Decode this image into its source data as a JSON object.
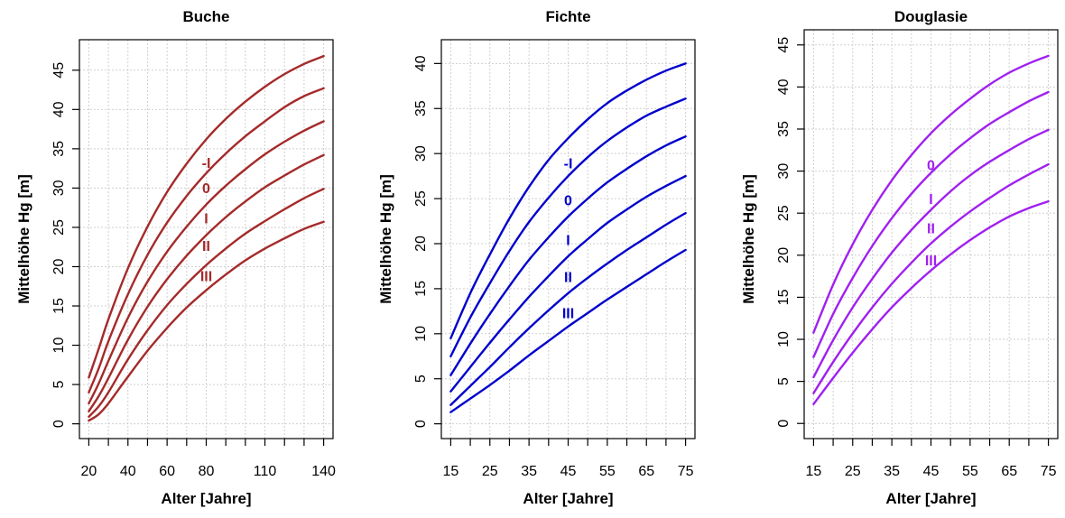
{
  "chart_data": [
    {
      "type": "line",
      "title": "Buche",
      "xlabel": "Alter [Jahre]",
      "ylabel": "Mittelhöhe Hg [m]",
      "xlim": [
        20,
        140
      ],
      "ylim": [
        0,
        47
      ],
      "x_ticks": [
        20,
        30,
        40,
        50,
        60,
        70,
        80,
        90,
        100,
        110,
        120,
        130,
        140
      ],
      "x_tick_labels": [
        "20",
        "",
        "40",
        "",
        "60",
        "",
        "80",
        "",
        "",
        "110",
        "",
        "",
        "140"
      ],
      "y_ticks": [
        0,
        5,
        10,
        15,
        20,
        25,
        30,
        35,
        40,
        45
      ],
      "y_tick_labels": [
        "0",
        "5",
        "10",
        "15",
        "20",
        "25",
        "30",
        "35",
        "40",
        "45"
      ],
      "grid": true,
      "color": "#A52A2A",
      "x": [
        20,
        25,
        30,
        40,
        50,
        60,
        70,
        80,
        90,
        100,
        110,
        120,
        130,
        140
      ],
      "series": [
        {
          "name": "-I",
          "values": [
            5.9,
            9.5,
            13.3,
            19.8,
            25.1,
            29.5,
            33.1,
            36.2,
            38.8,
            41.0,
            42.9,
            44.5,
            45.8,
            46.8
          ]
        },
        {
          "name": "0",
          "values": [
            4.0,
            7.0,
            10.5,
            16.5,
            21.5,
            25.6,
            29.0,
            31.9,
            34.4,
            36.6,
            38.5,
            40.3,
            41.7,
            42.7
          ]
        },
        {
          "name": "I",
          "values": [
            2.6,
            5.1,
            8.0,
            13.5,
            18.1,
            21.9,
            25.1,
            27.9,
            30.3,
            32.4,
            34.3,
            35.9,
            37.3,
            38.5
          ]
        },
        {
          "name": "II",
          "values": [
            1.6,
            3.5,
            5.8,
            10.7,
            14.9,
            18.4,
            21.4,
            24.0,
            26.3,
            28.3,
            30.1,
            31.6,
            33.0,
            34.2
          ]
        },
        {
          "name": "III",
          "values": [
            0.9,
            2.2,
            4.0,
            8.2,
            11.9,
            15.1,
            17.8,
            20.2,
            22.3,
            24.2,
            25.8,
            27.3,
            28.7,
            29.9
          ]
        },
        {
          "name": "",
          "values": [
            0.4,
            1.2,
            2.6,
            6.0,
            9.3,
            12.2,
            14.8,
            17.0,
            19.0,
            20.8,
            22.3,
            23.6,
            24.8,
            25.7
          ]
        }
      ],
      "site_labels": [
        {
          "text": "-I",
          "x": 80,
          "y": 33.1
        },
        {
          "text": "0",
          "x": 80,
          "y": 29.9
        },
        {
          "text": "I",
          "x": 80,
          "y": 26.0
        },
        {
          "text": "II",
          "x": 80,
          "y": 22.5
        },
        {
          "text": "III",
          "x": 80,
          "y": 18.7
        }
      ]
    },
    {
      "type": "line",
      "title": "Fichte",
      "xlabel": "Alter [Jahre]",
      "ylabel": "Mittelhöhe Hg [m]",
      "xlim": [
        15,
        75
      ],
      "ylim": [
        0,
        41
      ],
      "x_ticks": [
        15,
        20,
        25,
        30,
        35,
        40,
        45,
        50,
        55,
        60,
        65,
        70,
        75
      ],
      "x_tick_labels": [
        "15",
        "",
        "25",
        "",
        "35",
        "",
        "45",
        "",
        "55",
        "",
        "65",
        "",
        "75"
      ],
      "y_ticks": [
        0,
        5,
        10,
        15,
        20,
        25,
        30,
        35,
        40
      ],
      "y_tick_labels": [
        "0",
        "5",
        "10",
        "15",
        "20",
        "25",
        "30",
        "35",
        "40"
      ],
      "grid": true,
      "color": "#0000CD",
      "x": [
        15,
        20,
        25,
        30,
        35,
        40,
        45,
        50,
        55,
        60,
        65,
        70,
        75
      ],
      "series": [
        {
          "name": "-I",
          "values": [
            9.5,
            14.5,
            18.8,
            22.8,
            26.3,
            29.3,
            31.7,
            33.8,
            35.6,
            37.0,
            38.2,
            39.2,
            40.0
          ]
        },
        {
          "name": "0",
          "values": [
            7.5,
            11.8,
            15.6,
            19.2,
            22.4,
            25.1,
            27.5,
            29.6,
            31.4,
            32.9,
            34.2,
            35.2,
            36.1
          ]
        },
        {
          "name": "I",
          "values": [
            5.4,
            8.9,
            12.2,
            15.3,
            18.2,
            20.7,
            23.0,
            25.0,
            26.8,
            28.3,
            29.7,
            30.9,
            31.9
          ]
        },
        {
          "name": "II",
          "values": [
            3.6,
            6.3,
            9.0,
            11.6,
            14.1,
            16.4,
            18.6,
            20.5,
            22.3,
            23.8,
            25.2,
            26.4,
            27.5
          ]
        },
        {
          "name": "III",
          "values": [
            2.1,
            4.2,
            6.3,
            8.5,
            10.6,
            12.6,
            14.5,
            16.2,
            17.8,
            19.3,
            20.7,
            22.1,
            23.4
          ]
        },
        {
          "name": "",
          "values": [
            1.3,
            2.8,
            4.3,
            5.9,
            7.6,
            9.2,
            10.8,
            12.3,
            13.8,
            15.2,
            16.6,
            18.0,
            19.3
          ]
        }
      ],
      "site_labels": [
        {
          "text": "-I",
          "x": 45,
          "y": 28.8
        },
        {
          "text": "0",
          "x": 45,
          "y": 24.7
        },
        {
          "text": "I",
          "x": 45,
          "y": 20.3
        },
        {
          "text": "II",
          "x": 45,
          "y": 16.2
        },
        {
          "text": "III",
          "x": 45,
          "y": 12.2
        }
      ]
    },
    {
      "type": "line",
      "title": "Douglasie",
      "xlabel": "Alter [Jahre]",
      "ylabel": "Mittelhöhe Hg [m]",
      "xlim": [
        15,
        75
      ],
      "ylim": [
        0,
        45
      ],
      "x_ticks": [
        15,
        20,
        25,
        30,
        35,
        40,
        45,
        50,
        55,
        60,
        65,
        70,
        75
      ],
      "x_tick_labels": [
        "15",
        "",
        "25",
        "",
        "35",
        "",
        "45",
        "",
        "55",
        "",
        "65",
        "",
        "75"
      ],
      "y_ticks": [
        0,
        5,
        10,
        15,
        20,
        25,
        30,
        35,
        40,
        45
      ],
      "y_tick_labels": [
        "0",
        "5",
        "10",
        "15",
        "20",
        "25",
        "30",
        "35",
        "40",
        "45"
      ],
      "grid": true,
      "color": "#A020F0",
      "x": [
        15,
        20,
        25,
        30,
        35,
        40,
        45,
        50,
        55,
        60,
        65,
        70,
        75
      ],
      "series": [
        {
          "name": "0",
          "values": [
            10.8,
            16.5,
            21.3,
            25.4,
            28.9,
            31.9,
            34.5,
            36.7,
            38.6,
            40.3,
            41.7,
            42.8,
            43.7
          ]
        },
        {
          "name": "I",
          "values": [
            7.9,
            13.0,
            17.3,
            21.1,
            24.4,
            27.3,
            29.8,
            32.0,
            33.9,
            35.6,
            37.0,
            38.3,
            39.4
          ]
        },
        {
          "name": "II",
          "values": [
            5.5,
            9.9,
            13.8,
            17.2,
            20.3,
            23.0,
            25.4,
            27.6,
            29.5,
            31.1,
            32.5,
            33.8,
            34.9
          ]
        },
        {
          "name": "III",
          "values": [
            3.6,
            7.3,
            10.7,
            13.8,
            16.6,
            19.1,
            21.4,
            23.4,
            25.2,
            26.8,
            28.3,
            29.6,
            30.8
          ]
        },
        {
          "name": "",
          "values": [
            2.3,
            5.4,
            8.4,
            11.2,
            13.8,
            16.1,
            18.2,
            20.1,
            21.8,
            23.3,
            24.6,
            25.6,
            26.4
          ]
        }
      ],
      "site_labels": [
        {
          "text": "0",
          "x": 45,
          "y": 30.6
        },
        {
          "text": "I",
          "x": 45,
          "y": 26.6
        },
        {
          "text": "II",
          "x": 45,
          "y": 23.1
        },
        {
          "text": "III",
          "x": 45,
          "y": 19.3
        }
      ]
    }
  ]
}
